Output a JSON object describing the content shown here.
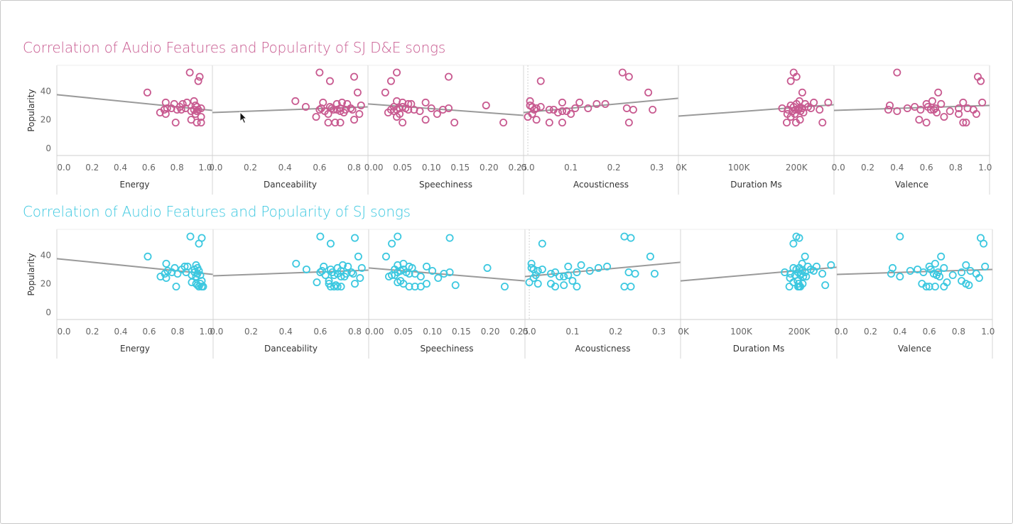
{
  "colors": {
    "de": "#c85a90",
    "sj": "#3cc8e0",
    "trend": "#9a9a9a",
    "grid": "#e6e6e6"
  },
  "chart_data": [
    {
      "id": "de",
      "type": "scatter",
      "title": "Correlation of Audio Features and Popularity of SJ D&E songs",
      "ylabel": "Popularity",
      "ylim": [
        -5,
        58
      ],
      "yticks": [
        0,
        20,
        40
      ],
      "popularity": [
        53,
        50,
        47,
        39,
        33,
        32,
        32,
        31,
        31,
        30,
        29,
        29,
        28,
        28,
        28,
        28,
        27,
        27,
        27,
        27,
        27,
        26,
        26,
        25,
        24,
        24,
        22,
        20,
        18,
        18,
        18
      ],
      "panels": [
        {
          "name": "Energy",
          "xlim": [
            -0.05,
            1.05
          ],
          "ticks": [
            0.0,
            0.2,
            0.4,
            0.6,
            0.8,
            1.0
          ],
          "tick_labels": [
            "0.0",
            "0.2",
            "0.4",
            "0.6",
            "0.8",
            "1.0"
          ],
          "trend": [
            -0.05,
            37.5,
            1.05,
            26.5
          ],
          "x": [
            0.89,
            0.96,
            0.95,
            0.59,
            0.92,
            0.72,
            0.87,
            0.84,
            0.78,
            0.93,
            0.82,
            0.94,
            0.73,
            0.86,
            0.97,
            0.76,
            0.92,
            0.83,
            0.71,
            0.95,
            0.8,
            0.9,
            0.94,
            0.68,
            0.93,
            0.72,
            0.97,
            0.9,
            0.79,
            0.94,
            0.97
          ]
        },
        {
          "name": "Danceability",
          "xlim": [
            -0.02,
            0.88
          ],
          "ticks": [
            0.0,
            0.2,
            0.4,
            0.6,
            0.8
          ],
          "tick_labels": [
            "0.0",
            "0.2",
            "0.4",
            "0.6",
            "0.8"
          ],
          "trend": [
            -0.02,
            25.0,
            0.88,
            29.0
          ],
          "x": [
            0.6,
            0.8,
            0.66,
            0.82,
            0.46,
            0.62,
            0.73,
            0.7,
            0.76,
            0.84,
            0.66,
            0.52,
            0.72,
            0.61,
            0.78,
            0.67,
            0.6,
            0.7,
            0.79,
            0.75,
            0.68,
            0.63,
            0.72,
            0.74,
            0.83,
            0.65,
            0.58,
            0.8,
            0.65,
            0.69,
            0.72
          ]
        },
        {
          "name": "Speechiness",
          "xlim": [
            -0.01,
            0.26
          ],
          "ticks": [
            0.0,
            0.05,
            0.1,
            0.15,
            0.2,
            0.25
          ],
          "tick_labels": [
            "0.00",
            "0.05",
            "0.10",
            "0.15",
            "0.20",
            "0.25"
          ],
          "trend": [
            -0.01,
            31.0,
            0.26,
            23.0
          ],
          "x": [
            0.04,
            0.13,
            0.03,
            0.02,
            0.04,
            0.09,
            0.05,
            0.06,
            0.065,
            0.195,
            0.035,
            0.05,
            0.1,
            0.045,
            0.055,
            0.13,
            0.04,
            0.07,
            0.12,
            0.06,
            0.03,
            0.035,
            0.08,
            0.025,
            0.11,
            0.045,
            0.04,
            0.09,
            0.05,
            0.14,
            0.225
          ]
        },
        {
          "name": "Acousticness",
          "xlim": [
            -0.01,
            0.35
          ],
          "ticks": [
            0.0,
            0.1,
            0.2,
            0.3
          ],
          "tick_labels": [
            "0.0",
            "0.1",
            "0.2",
            "0.3"
          ],
          "trend": [
            -0.01,
            25.0,
            0.35,
            35.0
          ],
          "x": [
            0.22,
            0.235,
            0.03,
            0.28,
            0.005,
            0.12,
            0.08,
            0.18,
            0.16,
            0.005,
            0.01,
            0.03,
            0.02,
            0.14,
            0.11,
            0.23,
            0.06,
            0.29,
            0.245,
            0.05,
            0.015,
            0.09,
            0.08,
            0.07,
            0.01,
            0.1,
            0.0,
            0.02,
            0.05,
            0.08,
            0.235
          ]
        },
        {
          "name": "Duration Ms",
          "xlim": [
            -5000,
            265000
          ],
          "ticks": [
            0,
            100000,
            200000
          ],
          "tick_labels": [
            "0K",
            "100K",
            "200K"
          ],
          "trend": [
            -5000,
            22.5,
            265000,
            30.5
          ],
          "x": [
            195000,
            200000,
            190000,
            210000,
            205000,
            255000,
            230000,
            215000,
            200000,
            190000,
            220000,
            195000,
            205000,
            225000,
            210000,
            175000,
            198000,
            185000,
            203000,
            240000,
            202000,
            193000,
            207000,
            212000,
            184000,
            197000,
            190000,
            206000,
            199000,
            245000,
            183000
          ]
        },
        {
          "name": "Valence",
          "xlim": [
            -0.03,
            1.03
          ],
          "ticks": [
            0.0,
            0.2,
            0.4,
            0.6,
            0.8,
            1.0
          ],
          "tick_labels": [
            "0.0",
            "0.2",
            "0.4",
            "0.6",
            "0.8",
            "1.0"
          ],
          "trend": [
            -0.03,
            26.5,
            1.03,
            30.0
          ],
          "x": [
            0.4,
            0.95,
            0.97,
            0.68,
            0.64,
            0.98,
            0.85,
            0.6,
            0.7,
            0.35,
            0.61,
            0.52,
            0.88,
            0.47,
            0.66,
            0.82,
            0.56,
            0.63,
            0.34,
            0.92,
            0.65,
            0.76,
            0.4,
            0.67,
            0.94,
            0.82,
            0.72,
            0.55,
            0.85,
            0.87,
            0.6
          ]
        }
      ]
    },
    {
      "id": "sj",
      "type": "scatter",
      "title": "Correlation of Audio Features and Popularity of SJ songs",
      "ylabel": "Popularity",
      "ylim": [
        -5,
        58
      ],
      "yticks": [
        0,
        20,
        40
      ],
      "popularity": [
        53,
        52,
        48,
        39,
        34,
        33,
        32,
        32,
        31,
        31,
        30,
        30,
        29,
        29,
        28,
        28,
        28,
        27,
        27,
        27,
        26,
        26,
        25,
        25,
        24,
        22,
        21,
        20,
        20,
        19,
        18,
        18,
        18,
        18
      ],
      "panels": [
        {
          "name": "Energy",
          "xlim": [
            -0.05,
            1.05
          ],
          "ticks": [
            0.0,
            0.2,
            0.4,
            0.6,
            0.8,
            1.0
          ],
          "tick_labels": [
            "0.0",
            "0.2",
            "0.4",
            "0.6",
            "0.8",
            "1.0"
          ],
          "trend": [
            -0.05,
            37.5,
            1.05,
            26.5
          ],
          "x": [
            0.89,
            0.97,
            0.95,
            0.59,
            0.72,
            0.93,
            0.85,
            0.87,
            0.78,
            0.94,
            0.83,
            0.92,
            0.73,
            0.95,
            0.86,
            0.76,
            0.92,
            0.8,
            0.71,
            0.94,
            0.9,
            0.96,
            0.68,
            0.93,
            0.72,
            0.97,
            0.9,
            0.93,
            0.96,
            0.94,
            0.79,
            0.95,
            0.98,
            0.97
          ]
        },
        {
          "name": "Danceability",
          "xlim": [
            -0.02,
            0.88
          ],
          "ticks": [
            0.0,
            0.2,
            0.4,
            0.6,
            0.8
          ],
          "tick_labels": [
            "0.0",
            "0.2",
            "0.4",
            "0.6",
            "0.8"
          ],
          "trend": [
            -0.02,
            25.5,
            0.88,
            29.5
          ],
          "x": [
            0.6,
            0.8,
            0.66,
            0.82,
            0.46,
            0.73,
            0.62,
            0.76,
            0.7,
            0.84,
            0.66,
            0.52,
            0.72,
            0.61,
            0.78,
            0.67,
            0.6,
            0.7,
            0.79,
            0.75,
            0.68,
            0.63,
            0.72,
            0.74,
            0.83,
            0.65,
            0.58,
            0.8,
            0.65,
            0.69,
            0.72,
            0.66,
            0.68,
            0.7
          ]
        },
        {
          "name": "Speechiness",
          "xlim": [
            -0.01,
            0.26
          ],
          "ticks": [
            0.0,
            0.05,
            0.1,
            0.15,
            0.2,
            0.25
          ],
          "tick_labels": [
            "0.00",
            "0.05",
            "0.10",
            "0.15",
            "0.20",
            "0.25"
          ],
          "trend": [
            -0.01,
            31.0,
            0.26,
            22.0
          ],
          "x": [
            0.04,
            0.13,
            0.03,
            0.02,
            0.05,
            0.04,
            0.09,
            0.06,
            0.065,
            0.195,
            0.035,
            0.05,
            0.1,
            0.045,
            0.055,
            0.13,
            0.04,
            0.07,
            0.12,
            0.06,
            0.03,
            0.035,
            0.08,
            0.025,
            0.11,
            0.045,
            0.04,
            0.09,
            0.05,
            0.14,
            0.225,
            0.06,
            0.07,
            0.08
          ]
        },
        {
          "name": "Acousticness",
          "xlim": [
            -0.01,
            0.35
          ],
          "ticks": [
            0.0,
            0.1,
            0.2,
            0.3
          ],
          "tick_labels": [
            "0.0",
            "0.1",
            "0.2",
            "0.3"
          ],
          "trend": [
            -0.01,
            25.0,
            0.35,
            35.0
          ],
          "x": [
            0.22,
            0.235,
            0.03,
            0.28,
            0.005,
            0.12,
            0.09,
            0.18,
            0.16,
            0.005,
            0.01,
            0.03,
            0.02,
            0.14,
            0.11,
            0.23,
            0.06,
            0.29,
            0.245,
            0.05,
            0.015,
            0.09,
            0.08,
            0.07,
            0.01,
            0.1,
            0.0,
            0.02,
            0.05,
            0.08,
            0.235,
            0.22,
            0.06,
            0.11
          ]
        },
        {
          "name": "Duration Ms",
          "xlim": [
            -5000,
            265000
          ],
          "ticks": [
            0,
            100000,
            200000
          ],
          "tick_labels": [
            "0K",
            "100K",
            "200K"
          ],
          "trend": [
            -5000,
            22.0,
            265000,
            31.5
          ],
          "x": [
            195000,
            200000,
            190000,
            210000,
            205000,
            255000,
            230000,
            215000,
            200000,
            190000,
            220000,
            195000,
            205000,
            225000,
            210000,
            175000,
            198000,
            185000,
            203000,
            240000,
            202000,
            193000,
            207000,
            212000,
            184000,
            197000,
            190000,
            206000,
            199000,
            245000,
            183000,
            202000,
            200000,
            198000
          ]
        },
        {
          "name": "Valence",
          "xlim": [
            -0.03,
            1.03
          ],
          "ticks": [
            0.0,
            0.2,
            0.4,
            0.6,
            0.8,
            1.0
          ],
          "tick_labels": [
            "0.0",
            "0.2",
            "0.4",
            "0.6",
            "0.8",
            "1.0"
          ],
          "trend": [
            -0.03,
            26.5,
            1.03,
            30.0
          ],
          "x": [
            0.4,
            0.95,
            0.97,
            0.68,
            0.64,
            0.85,
            0.98,
            0.6,
            0.7,
            0.35,
            0.61,
            0.52,
            0.88,
            0.47,
            0.66,
            0.82,
            0.56,
            0.63,
            0.34,
            0.92,
            0.65,
            0.76,
            0.4,
            0.67,
            0.94,
            0.82,
            0.72,
            0.55,
            0.85,
            0.87,
            0.6,
            0.64,
            0.58,
            0.7
          ]
        }
      ]
    }
  ]
}
